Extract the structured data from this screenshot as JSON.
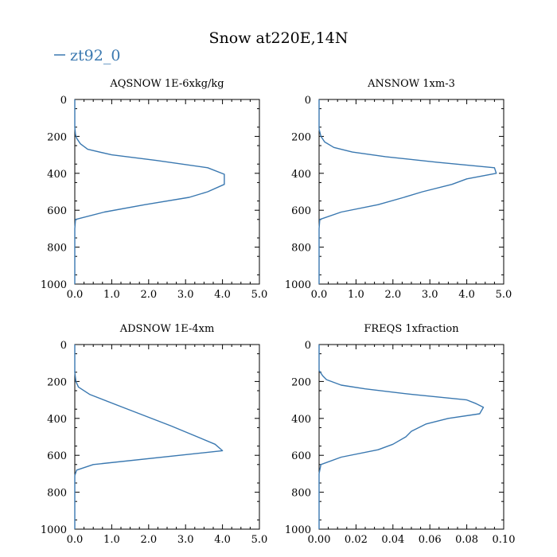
{
  "title": "Snow at220E,14N",
  "legend": [
    {
      "label": "zt92_0",
      "color": "#3a78b0"
    }
  ],
  "chart_data": [
    {
      "type": "line",
      "title": "AQSNOW  1E-6xkg/kg",
      "xlim": [
        0,
        5
      ],
      "ylim": [
        1000,
        0
      ],
      "xticks": [
        0,
        1,
        2,
        3,
        4,
        5
      ],
      "xtick_labels": [
        "0.0",
        "1.0",
        "2.0",
        "3.0",
        "4.0",
        "5.0"
      ],
      "yticks": [
        0,
        200,
        400,
        600,
        800,
        1000
      ],
      "ytick_labels": [
        "0",
        "200",
        "400",
        "600",
        "800",
        "1000"
      ],
      "series": [
        {
          "name": "zt92_0",
          "points": [
            [
              0,
              1000
            ],
            [
              0,
              700
            ],
            [
              0.02,
              650
            ],
            [
              0.8,
              610
            ],
            [
              1.9,
              570
            ],
            [
              3.1,
              530
            ],
            [
              3.6,
              500
            ],
            [
              4.05,
              460
            ],
            [
              4.05,
              405
            ],
            [
              3.6,
              370
            ],
            [
              2.2,
              330
            ],
            [
              1,
              300
            ],
            [
              0.35,
              270
            ],
            [
              0.15,
              240
            ],
            [
              0.05,
              210
            ],
            [
              0.02,
              190
            ],
            [
              0,
              150
            ],
            [
              0,
              0
            ]
          ]
        }
      ]
    },
    {
      "type": "line",
      "title": "ANSNOW  1xm-3",
      "xlim": [
        0,
        5
      ],
      "ylim": [
        1000,
        0
      ],
      "xticks": [
        0,
        1,
        2,
        3,
        4,
        5
      ],
      "xtick_labels": [
        "0.0",
        "1.0",
        "2.0",
        "3.0",
        "4.0",
        "5.0"
      ],
      "yticks": [
        0,
        200,
        400,
        600,
        800,
        1000
      ],
      "ytick_labels": [
        "0",
        "200",
        "400",
        "600",
        "800",
        "1000"
      ],
      "series": [
        {
          "name": "zt92_0",
          "points": [
            [
              0,
              1000
            ],
            [
              0,
              700
            ],
            [
              0.02,
              650
            ],
            [
              0.6,
              610
            ],
            [
              1.6,
              570
            ],
            [
              2.3,
              530
            ],
            [
              2.8,
              500
            ],
            [
              3.6,
              460
            ],
            [
              4,
              430
            ],
            [
              4.8,
              400
            ],
            [
              4.75,
              370
            ],
            [
              3.2,
              340
            ],
            [
              1.8,
              310
            ],
            [
              0.9,
              285
            ],
            [
              0.4,
              260
            ],
            [
              0.15,
              230
            ],
            [
              0.05,
              200
            ],
            [
              0,
              160
            ],
            [
              0,
              0
            ]
          ]
        }
      ]
    },
    {
      "type": "line",
      "title": "ADSNOW  1E-4xm",
      "xlim": [
        0,
        5
      ],
      "ylim": [
        1000,
        0
      ],
      "xticks": [
        0,
        1,
        2,
        3,
        4,
        5
      ],
      "xtick_labels": [
        "0.0",
        "1.0",
        "2.0",
        "3.0",
        "4.0",
        "5.0"
      ],
      "yticks": [
        0,
        200,
        400,
        600,
        800,
        1000
      ],
      "ytick_labels": [
        "0",
        "200",
        "400",
        "600",
        "800",
        "1000"
      ],
      "series": [
        {
          "name": "zt92_0",
          "points": [
            [
              0,
              1000
            ],
            [
              0,
              710
            ],
            [
              0.05,
              680
            ],
            [
              0.5,
              650
            ],
            [
              4,
              575
            ],
            [
              3.8,
              540
            ],
            [
              2.6,
              440
            ],
            [
              1.3,
              340
            ],
            [
              0.4,
              270
            ],
            [
              0.1,
              230
            ],
            [
              0.03,
              200
            ],
            [
              0,
              150
            ],
            [
              0,
              0
            ]
          ]
        }
      ]
    },
    {
      "type": "line",
      "title": "FREQS  1xfraction",
      "xlim": [
        0,
        0.1
      ],
      "ylim": [
        1000,
        0
      ],
      "xticks": [
        0,
        0.02,
        0.04,
        0.06,
        0.08,
        0.1
      ],
      "xtick_labels": [
        "0.00",
        "0.02",
        "0.04",
        "0.06",
        "0.08",
        "0.10"
      ],
      "yticks": [
        0,
        200,
        400,
        600,
        800,
        1000
      ],
      "ytick_labels": [
        "0",
        "200",
        "400",
        "600",
        "800",
        "1000"
      ],
      "series": [
        {
          "name": "zt92_0",
          "points": [
            [
              0,
              1000
            ],
            [
              0,
              700
            ],
            [
              0.001,
              650
            ],
            [
              0.012,
              610
            ],
            [
              0.032,
              570
            ],
            [
              0.04,
              540
            ],
            [
              0.047,
              500
            ],
            [
              0.05,
              470
            ],
            [
              0.058,
              430
            ],
            [
              0.07,
              400
            ],
            [
              0.087,
              375
            ],
            [
              0.089,
              340
            ],
            [
              0.085,
              320
            ],
            [
              0.08,
              300
            ],
            [
              0.05,
              270
            ],
            [
              0.025,
              240
            ],
            [
              0.012,
              220
            ],
            [
              0.004,
              190
            ],
            [
              0.002,
              170
            ],
            [
              0,
              140
            ],
            [
              0,
              0
            ]
          ]
        }
      ]
    }
  ]
}
